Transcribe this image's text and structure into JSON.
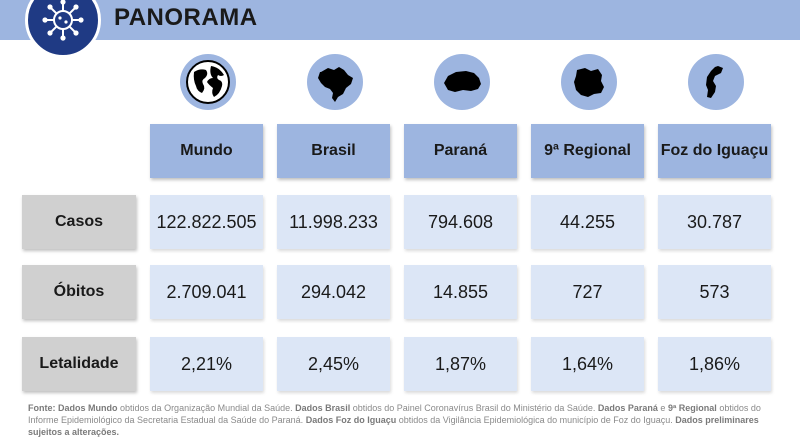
{
  "title": "PANORAMA",
  "columns": [
    {
      "label": "Mundo",
      "icon": "globe-icon"
    },
    {
      "label": "Brasil",
      "icon": "brazil-map-icon"
    },
    {
      "label": "Paraná",
      "icon": "parana-map-icon"
    },
    {
      "label": "9ª Regional",
      "icon": "regional-map-icon"
    },
    {
      "label": "Foz do Iguaçu",
      "icon": "foz-map-icon"
    }
  ],
  "rows": [
    {
      "label": "Casos",
      "values": [
        "122.822.505",
        "11.998.233",
        "794.608",
        "44.255",
        "30.787"
      ]
    },
    {
      "label": "Óbitos",
      "values": [
        "2.709.041",
        "294.042",
        "14.855",
        "727",
        "573"
      ]
    },
    {
      "label": "Letalidade",
      "values": [
        "2,21%",
        "2,45%",
        "1,87%",
        "1,64%",
        "1,86%"
      ]
    }
  ],
  "footnote": {
    "fonte": "Fonte:",
    "mundo_label": "Dados Mundo",
    "mundo_text": "obtidos da Organização Mundial da Saúde.",
    "brasil_label": "Dados Brasil",
    "brasil_text": "obtidos do Painel Coronavírus Brasil do Ministério da Saúde.",
    "parana_label": "Dados Paraná",
    "parana_text": "e",
    "regional_label": "9ª Regional",
    "regional_text": "obtidos do Informe Epidemiológico da Secretaria Estadual da Saúde do Paraná.",
    "foz_label": "Dados Foz do Iguaçu",
    "foz_text": "obtidos da Vigilância Epidemiológica do município de Foz do Iguaçu.",
    "prelim": "Dados preliminares sujeitos a alterações."
  },
  "colors": {
    "header_blue": "#9db5e0",
    "cell_blue": "#dce6f6",
    "label_gray": "#d0d0d0",
    "logo_navy": "#1f3a84"
  }
}
